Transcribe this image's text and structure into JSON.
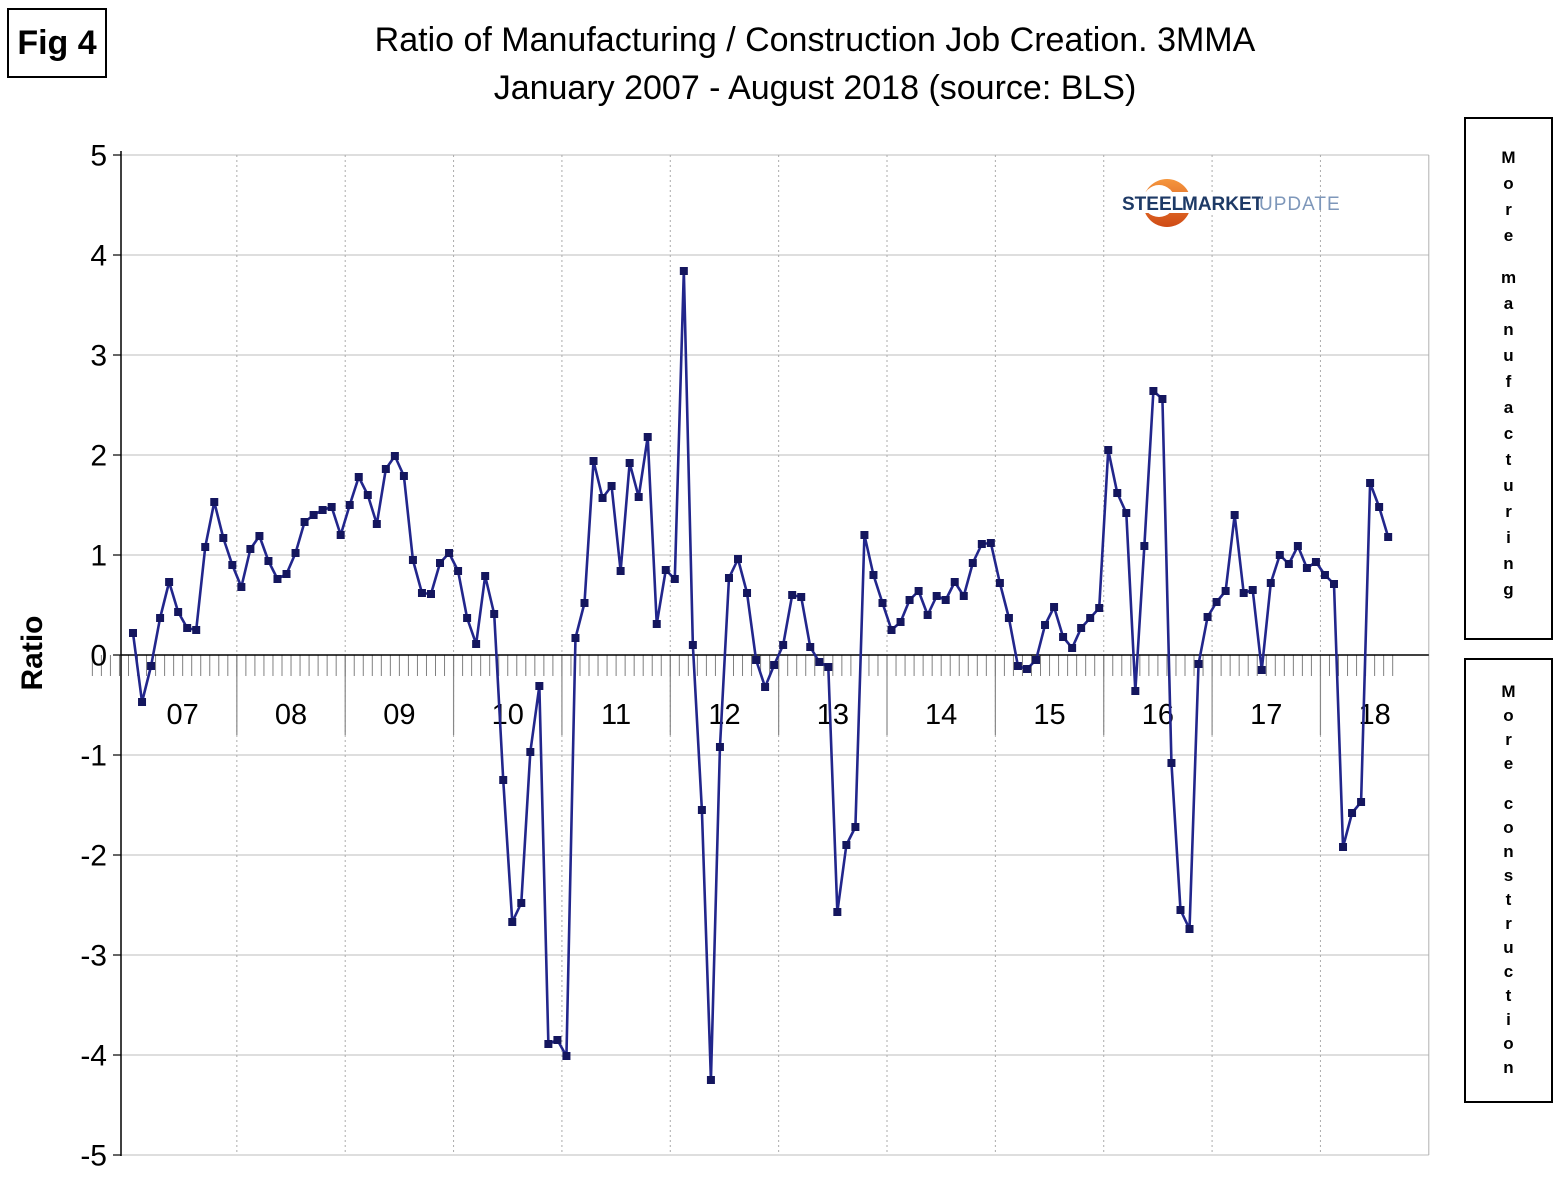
{
  "figure_label": "Fig 4",
  "title_line1": "Ratio of Manufacturing / Construction Job Creation. 3MMA",
  "title_line2": "January 2007 - August 2018 (source: BLS)",
  "y_axis_label": "Ratio",
  "right_labels": {
    "top": "More manufacturing",
    "bottom": "More construction"
  },
  "logo": {
    "steel": "STEEL",
    "market": "MARKET",
    "update": "UPDATE"
  },
  "chart_data": {
    "type": "line",
    "title": "Ratio of Manufacturing / Construction Job Creation. 3MMA",
    "subtitle": "January 2007 - August 2018 (source: BLS)",
    "ylabel": "Ratio",
    "xlabel": "",
    "ylim": [
      -5,
      5
    ],
    "grid": "horizontal solid, vertical dotted at year boundaries",
    "legend_position": "none",
    "marker": "square",
    "line_color": "#22268c",
    "marker_color": "#14165e",
    "x_start": "Jan 2007",
    "x_end": "Aug 2018",
    "x_frequency": "monthly",
    "year_labels": [
      "07",
      "08",
      "09",
      "10",
      "11",
      "12",
      "13",
      "14",
      "15",
      "16",
      "17",
      "18"
    ],
    "y_ticks": [
      5,
      4,
      3,
      2,
      1,
      0,
      -1,
      -2,
      -3,
      -4,
      -5
    ],
    "series": [
      {
        "name": "Manufacturing / Construction job creation ratio (3MMA)",
        "values": [
          0.22,
          -0.47,
          -0.11,
          0.37,
          0.73,
          0.43,
          0.27,
          0.25,
          1.08,
          1.53,
          1.17,
          0.9,
          0.68,
          1.06,
          1.19,
          0.94,
          0.76,
          0.81,
          1.02,
          1.33,
          1.4,
          1.45,
          1.48,
          1.2,
          1.5,
          1.78,
          1.6,
          1.31,
          1.86,
          1.99,
          1.79,
          0.95,
          0.62,
          0.61,
          0.92,
          1.02,
          0.84,
          0.37,
          0.11,
          0.79,
          0.41,
          -1.25,
          -2.67,
          -2.48,
          -0.97,
          -0.31,
          -3.89,
          -3.85,
          -4.01,
          0.17,
          0.52,
          1.94,
          1.57,
          1.69,
          0.84,
          1.92,
          1.58,
          2.18,
          0.31,
          0.85,
          0.76,
          3.84,
          0.1,
          -1.55,
          -4.25,
          -0.92,
          0.77,
          0.96,
          0.62,
          -0.05,
          -0.32,
          -0.1,
          0.1,
          0.6,
          0.58,
          0.08,
          -0.07,
          -0.12,
          -2.57,
          -1.9,
          -1.72,
          1.2,
          0.8,
          0.52,
          0.25,
          0.33,
          0.55,
          0.64,
          0.4,
          0.59,
          0.55,
          0.73,
          0.59,
          0.92,
          1.11,
          1.12,
          0.72,
          0.37,
          -0.11,
          -0.14,
          -0.05,
          0.3,
          0.48,
          0.18,
          0.07,
          0.27,
          0.37,
          0.47,
          2.05,
          1.62,
          1.42,
          -0.36,
          1.09,
          2.64,
          2.56,
          -1.08,
          -2.55,
          -2.74,
          -0.09,
          0.38,
          0.53,
          0.64,
          1.4,
          0.62,
          0.65,
          -0.15,
          0.72,
          1.0,
          0.91,
          1.09,
          0.87,
          0.93,
          0.8,
          0.71,
          -1.92,
          -1.58,
          -1.47,
          1.72,
          1.48,
          1.18
        ]
      }
    ]
  }
}
